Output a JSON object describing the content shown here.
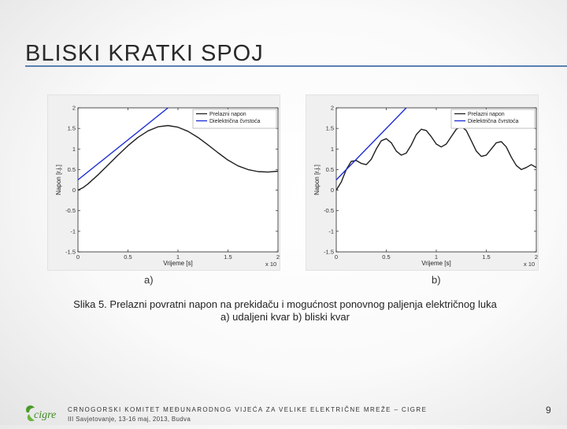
{
  "slide": {
    "title": "BLISKI KRATKI SPOJ",
    "caption_line1": "Slika 5. Prelazni povratni napon na prekidaču i mogućnost ponovnog paljenja električnog luka",
    "caption_line2": "a) udaljeni kvar b) bliski kvar",
    "label_a": "a)",
    "label_b": "b)",
    "footer_org": "CRNOGORSKI KOMITET MEĐUNARODNOG VIJEĆA ZA VELIKE ELEKTRIČNE MREŽE – CIGRE",
    "footer_event": "III Savjetovanje, 13-16 maj, 2013, Budva",
    "page_number": "9",
    "logo_text": "cigre"
  },
  "colors": {
    "title_rule": "#5a7fb2",
    "series_prelazni": "#1f1f1f",
    "series_dielektricna": "#1b2bd6",
    "plot_background": "#ffffff"
  },
  "chart_data": [
    {
      "type": "line",
      "xlabel": "Vrijeme [s]",
      "ylabel": "Napon [r.j.]",
      "x_multiplier": "x 10",
      "x_multiplier_exp": "-3",
      "xlim": [
        0,
        2
      ],
      "ylim": [
        -1.5,
        2
      ],
      "xticks": [
        "0",
        "0.5",
        "1",
        "1.5",
        "2"
      ],
      "yticks": [
        "-1.5",
        "-1",
        "-0.5",
        "0",
        "0.5",
        "1",
        "1.5",
        "2"
      ],
      "legend_position": "top-right",
      "grid": false,
      "series": [
        {
          "name": "Prelazni napon",
          "x": [
            0,
            0.05,
            0.1,
            0.2,
            0.3,
            0.4,
            0.5,
            0.6,
            0.7,
            0.8,
            0.9,
            1.0,
            1.1,
            1.2,
            1.3,
            1.4,
            1.5,
            1.6,
            1.7,
            1.8,
            1.9,
            2.0
          ],
          "y": [
            0.0,
            0.06,
            0.15,
            0.37,
            0.61,
            0.85,
            1.08,
            1.28,
            1.44,
            1.54,
            1.57,
            1.53,
            1.43,
            1.28,
            1.1,
            0.91,
            0.73,
            0.59,
            0.5,
            0.45,
            0.44,
            0.46
          ]
        },
        {
          "name": "Dielektrična čvrstoća",
          "x": [
            0,
            0.9
          ],
          "y": [
            0.25,
            2.0
          ]
        }
      ]
    },
    {
      "type": "line",
      "xlabel": "Vrijeme [s]",
      "ylabel": "Napon [r.j.]",
      "x_multiplier": "x 10",
      "x_multiplier_exp": "-3",
      "xlim": [
        0,
        2
      ],
      "ylim": [
        -1.5,
        2
      ],
      "xticks": [
        "0",
        "0.5",
        "1",
        "1.5",
        "2"
      ],
      "yticks": [
        "-1.5",
        "-1",
        "-0.5",
        "0",
        "0.5",
        "1",
        "1.5",
        "2"
      ],
      "legend_position": "top-right",
      "grid": false,
      "series": [
        {
          "name": "Prelazni napon",
          "x": [
            0,
            0.05,
            0.1,
            0.15,
            0.2,
            0.25,
            0.3,
            0.35,
            0.4,
            0.45,
            0.5,
            0.55,
            0.6,
            0.65,
            0.7,
            0.75,
            0.8,
            0.85,
            0.9,
            0.95,
            1.0,
            1.05,
            1.1,
            1.15,
            1.2,
            1.25,
            1.3,
            1.35,
            1.4,
            1.45,
            1.5,
            1.55,
            1.6,
            1.65,
            1.7,
            1.75,
            1.8,
            1.85,
            1.9,
            1.95,
            2.0
          ],
          "y": [
            0.0,
            0.2,
            0.5,
            0.7,
            0.72,
            0.65,
            0.62,
            0.75,
            1.0,
            1.2,
            1.25,
            1.15,
            0.95,
            0.85,
            0.9,
            1.1,
            1.35,
            1.48,
            1.45,
            1.3,
            1.12,
            1.05,
            1.12,
            1.3,
            1.48,
            1.55,
            1.45,
            1.2,
            0.95,
            0.82,
            0.85,
            1.0,
            1.15,
            1.18,
            1.05,
            0.8,
            0.6,
            0.5,
            0.55,
            0.62,
            0.55
          ]
        },
        {
          "name": "Dielektrična čvrstoća",
          "x": [
            0,
            0.7
          ],
          "y": [
            0.25,
            2.0
          ]
        }
      ]
    }
  ]
}
